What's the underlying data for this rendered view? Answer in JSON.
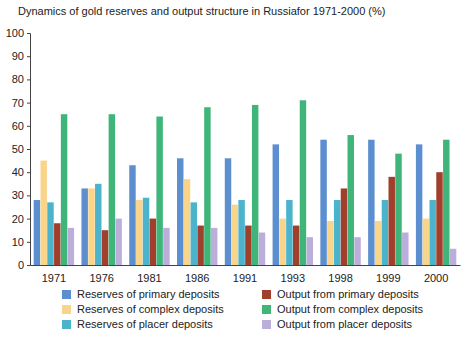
{
  "chart_data": {
    "type": "bar",
    "title": "Dynamics of gold reserves and output structure in Russiafor 1971-2000 (%)",
    "categories": [
      "1971",
      "1976",
      "1981",
      "1986",
      "1991",
      "1993",
      "1998",
      "1999",
      "2000"
    ],
    "series": [
      {
        "name": "Reserves of primary deposits",
        "color": "#5b8fd0",
        "values": [
          28,
          33,
          43,
          46,
          46,
          52,
          54,
          54,
          52
        ]
      },
      {
        "name": "Reserves of complex deposits",
        "color": "#f9d48b",
        "values": [
          45,
          33,
          28,
          37,
          26,
          20,
          19,
          19,
          20
        ]
      },
      {
        "name": "Reserves of placer deposits",
        "color": "#4bb4cc",
        "values": [
          27,
          35,
          29,
          27,
          28,
          28,
          28,
          28,
          28
        ]
      },
      {
        "name": "Output from primary deposits",
        "color": "#a0402c",
        "values": [
          18,
          15,
          20,
          17,
          17,
          17,
          33,
          38,
          40
        ]
      },
      {
        "name": "Output from complex deposits",
        "color": "#3fb57a",
        "values": [
          65,
          65,
          64,
          68,
          69,
          71,
          56,
          48,
          54
        ]
      },
      {
        "name": "Output from placer deposits",
        "color": "#bcaedb",
        "values": [
          16,
          20,
          16,
          16,
          14,
          12,
          12,
          14,
          7
        ]
      }
    ],
    "ylim": [
      0,
      100
    ],
    "yticks": [
      0,
      10,
      20,
      30,
      40,
      50,
      60,
      70,
      80,
      90,
      100
    ],
    "grid": false,
    "legend": "bottom"
  }
}
